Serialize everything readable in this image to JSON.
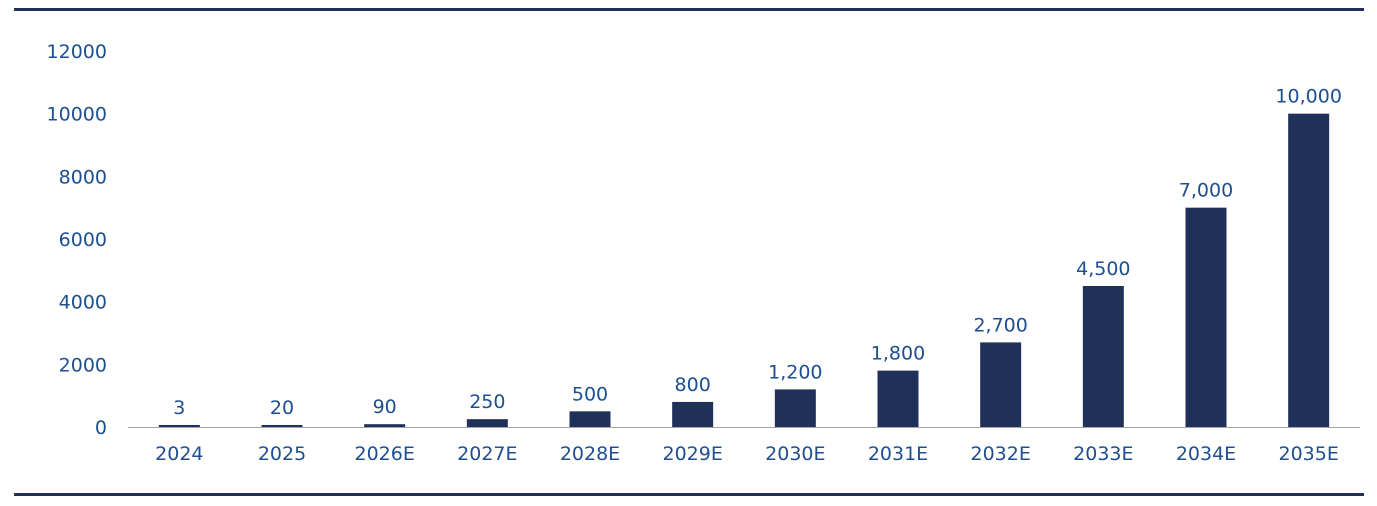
{
  "chart_data": {
    "type": "bar",
    "title": "",
    "xlabel": "",
    "ylabel": "",
    "categories": [
      "2024",
      "2025",
      "2026E",
      "2027E",
      "2028E",
      "2029E",
      "2030E",
      "2031E",
      "2032E",
      "2033E",
      "2034E",
      "2035E"
    ],
    "values": [
      3,
      20,
      90,
      250,
      500,
      800,
      1200,
      1800,
      2700,
      4500,
      7000,
      10000
    ],
    "data_labels": [
      "3",
      "20",
      "90",
      "250",
      "500",
      "800",
      "1,200",
      "1,800",
      "2,700",
      "4,500",
      "7,000",
      "10,000"
    ],
    "y_ticks": [
      "0",
      "2000",
      "4000",
      "6000",
      "8000",
      "10000",
      "12000"
    ],
    "ylim": [
      0,
      12000
    ],
    "grid": false,
    "legend": "none",
    "colors": {
      "bar": "#1f3158",
      "text": "#1d4f91",
      "rule": "#1f3158",
      "axis": "#a6a6a6"
    }
  }
}
